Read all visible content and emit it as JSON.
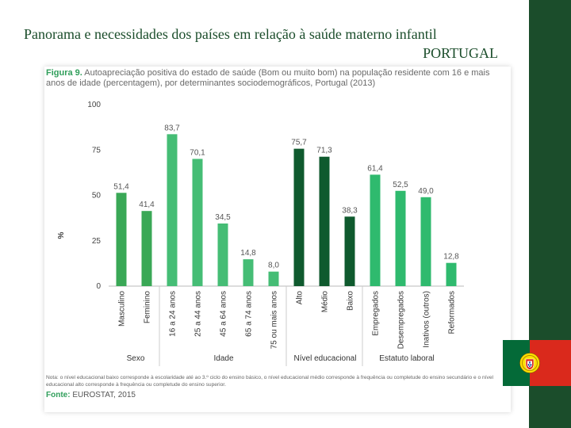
{
  "slide": {
    "title": "Panorama e necessidades dos países em relação à saúde materno infantil",
    "subtitle": "PORTUGAL"
  },
  "figure": {
    "label": "Figura 9.",
    "caption": "Autoapreciação positiva do estado de saúde (Bom ou muito bom) na população residente com 16 e mais anos de idade (percentagem), por determinantes sociodemográficos, Portugal (2013)",
    "note": "Nota: o nível educacional baixo corresponde à escolaridade até ao 3.º ciclo do ensino básico, o nível educacional médio corresponde à frequência ou completude do ensino secundário e o nível educacional alto corresponde à frequência ou completude do ensino superior.",
    "source_label": "Fonte:",
    "source_text": "EUROSTAT, 2015"
  },
  "chart_data": {
    "type": "bar",
    "title": "Autoapreciação positiva do estado de saúde (Bom ou muito bom), Portugal (2013)",
    "xlabel": "",
    "ylabel": "%",
    "ylim": [
      0,
      100
    ],
    "yticks": [
      "0",
      "25",
      "50",
      "75",
      "100"
    ],
    "categories": [
      "Masculino",
      "Feminino",
      "16 a 24 anos",
      "25 a 44 anos",
      "45 a 64 anos",
      "65 a 74 anos",
      "75 ou mais anos",
      "Alto",
      "Médio",
      "Baixo",
      "Empregados",
      "Desempregados",
      "Inativos (outros)",
      "Reformados"
    ],
    "values": [
      51.4,
      41.4,
      83.7,
      70.1,
      34.5,
      14.8,
      8.0,
      75.7,
      71.3,
      38.3,
      61.4,
      52.5,
      49.0,
      12.8
    ],
    "value_labels": [
      "51,4",
      "41,4",
      "83,7",
      "70,1",
      "34,5",
      "14,8",
      "8,0",
      "75,7",
      "71,3",
      "38,3",
      "61,4",
      "52,5",
      "49,0",
      "12,8"
    ],
    "colors": [
      "#3aa856",
      "#3aa856",
      "#45bd75",
      "#45bd75",
      "#45bd75",
      "#45bd75",
      "#45bd75",
      "#0f5a2e",
      "#0f5a2e",
      "#0f5a2e",
      "#2fba6e",
      "#2fba6e",
      "#2fba6e",
      "#2fba6e"
    ],
    "groups": [
      {
        "name": "Sexo",
        "start": 0,
        "end": 1
      },
      {
        "name": "Idade",
        "start": 2,
        "end": 6
      },
      {
        "name": "Nível educacional",
        "start": 7,
        "end": 9
      },
      {
        "name": "Estatuto laboral",
        "start": 10,
        "end": 13
      }
    ]
  }
}
